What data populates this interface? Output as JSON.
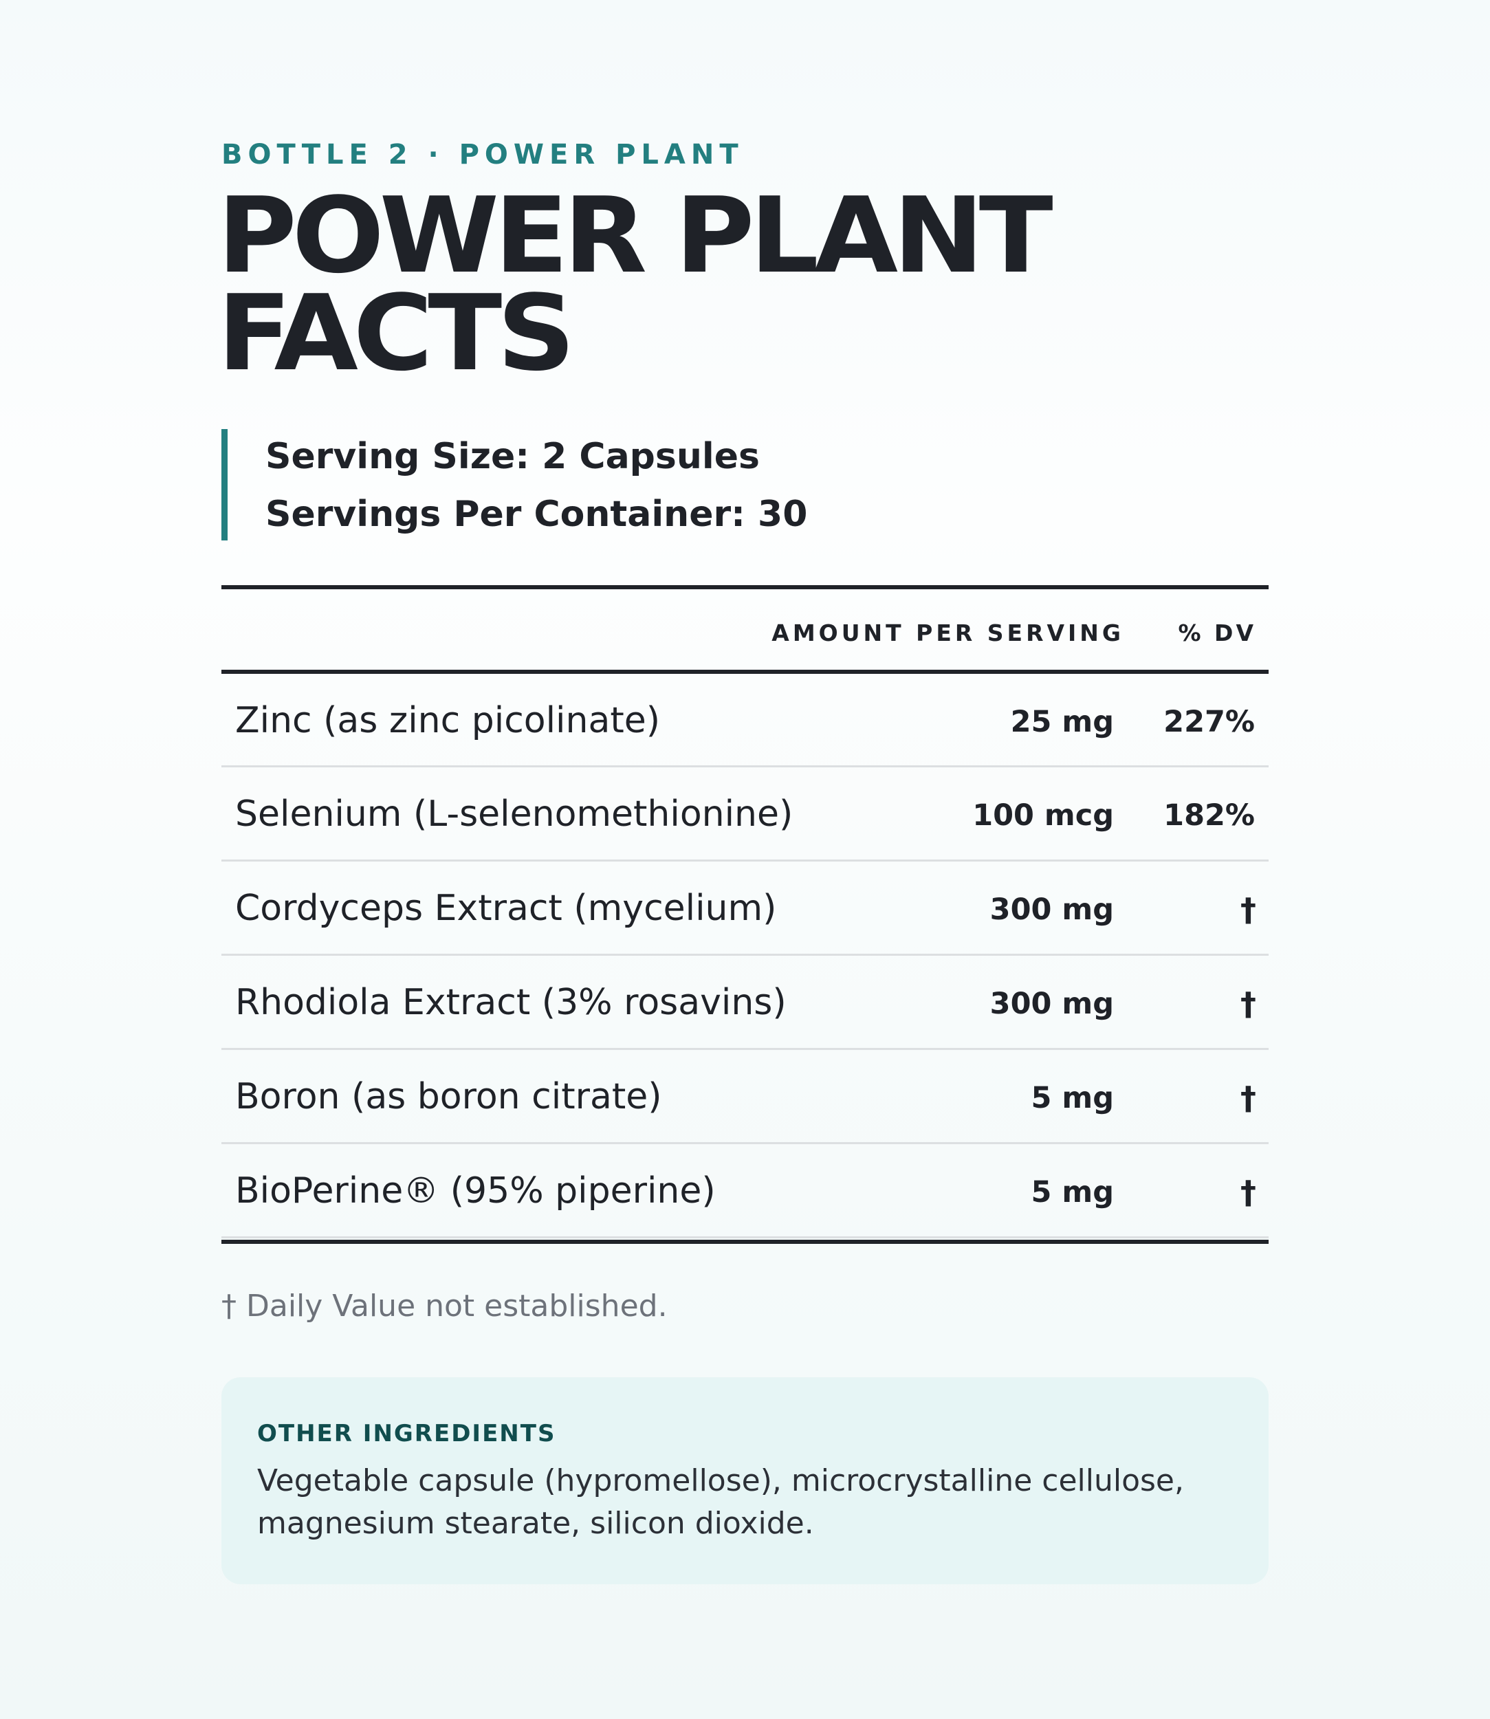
{
  "header": {
    "eyebrow": "BOTTLE 2 · POWER PLANT",
    "title_line1": "POWER PLANT",
    "title_line2": "FACTS"
  },
  "serving": {
    "size": "Serving Size: 2 Capsules",
    "per_container": "Servings Per Container: 30"
  },
  "table": {
    "headers": {
      "amount": "AMOUNT PER SERVING",
      "dv": "% DV"
    },
    "rows": [
      {
        "name": "Zinc (as zinc picolinate)",
        "amount": "25 mg",
        "dv": "227%"
      },
      {
        "name": "Selenium (L-selenomethionine)",
        "amount": "100 mcg",
        "dv": "182%"
      },
      {
        "name": "Cordyceps Extract (mycelium)",
        "amount": "300 mg",
        "dv": "†"
      },
      {
        "name": "Rhodiola Extract (3% rosavins)",
        "amount": "300 mg",
        "dv": "†"
      },
      {
        "name": "Boron (as boron citrate)",
        "amount": "5 mg",
        "dv": "†"
      },
      {
        "name": "BioPerine® (95% piperine)",
        "amount": "5 mg",
        "dv": "†"
      }
    ]
  },
  "footnote": "† Daily Value not established.",
  "other_ingredients": {
    "title": "OTHER INGREDIENTS",
    "text": "Vegetable capsule (hypromellose), microcrystalline cellulose, magnesium stearate, silicon dioxide."
  },
  "colors": {
    "accent": "#237f80",
    "text": "#1f2228",
    "box_background": "#e6f5f5",
    "box_title": "#114d4e",
    "muted": "#6d727a"
  }
}
